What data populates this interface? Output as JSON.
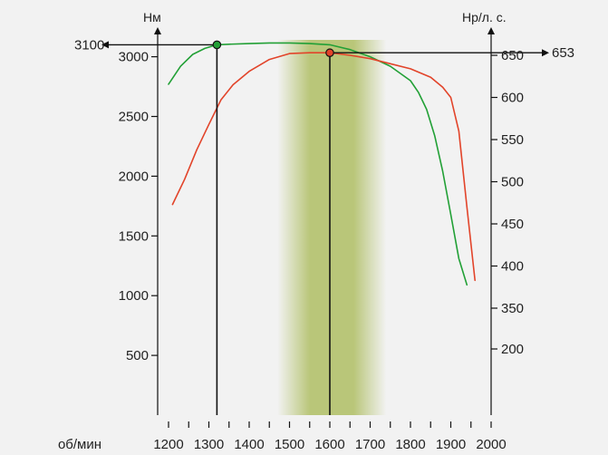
{
  "chart_data": {
    "type": "line",
    "xlabel": "об/мин",
    "y_left_label": "Нм",
    "y_right_label": "Hp/л. с.",
    "xlim": [
      1180,
      2000
    ],
    "x_ticks": [
      1200,
      1300,
      1400,
      1500,
      1600,
      1700,
      1800,
      1900,
      2000
    ],
    "x_minor_ticks": [
      1250,
      1350,
      1450,
      1550,
      1650,
      1750,
      1850,
      1950
    ],
    "y_left_ticks": [
      500,
      1000,
      1500,
      2000,
      2500,
      3000
    ],
    "y_right_ticks": [
      200,
      350,
      400,
      450,
      500,
      550,
      600,
      650
    ],
    "series": [
      {
        "axis": "left",
        "color": "#22a036",
        "x": [
          1200,
          1230,
          1260,
          1290,
          1320,
          1350,
          1400,
          1450,
          1500,
          1550,
          1600,
          1650,
          1700,
          1750,
          1800,
          1820,
          1840,
          1860,
          1880,
          1900,
          1920,
          1940
        ],
        "values": [
          2770,
          2920,
          3020,
          3070,
          3100,
          3105,
          3110,
          3115,
          3115,
          3110,
          3100,
          3060,
          3000,
          2920,
          2800,
          2700,
          2560,
          2340,
          2040,
          1680,
          1310,
          1090
        ]
      },
      {
        "axis": "right",
        "color": "#e2442a",
        "x": [
          1210,
          1240,
          1270,
          1300,
          1330,
          1360,
          1400,
          1450,
          1500,
          1550,
          1600,
          1650,
          1700,
          1750,
          1800,
          1850,
          1880,
          1900,
          1920,
          1940,
          1960
        ],
        "values": [
          473,
          503,
          538,
          568,
          597,
          615,
          631,
          645,
          652,
          653,
          653,
          650,
          646,
          640,
          634,
          624,
          612,
          600,
          560,
          470,
          383
        ]
      }
    ],
    "markers": [
      {
        "x": 1320,
        "value": 3100,
        "axis": "left",
        "color": "#22a036",
        "label": "3100"
      },
      {
        "x": 1600,
        "value": 653,
        "axis": "right",
        "color": "#e2442a",
        "label": "653"
      }
    ],
    "highlight_band": {
      "from": 1470,
      "to": 1740,
      "core_from": 1550,
      "core_to": 1660,
      "color": "#b9c679"
    }
  }
}
